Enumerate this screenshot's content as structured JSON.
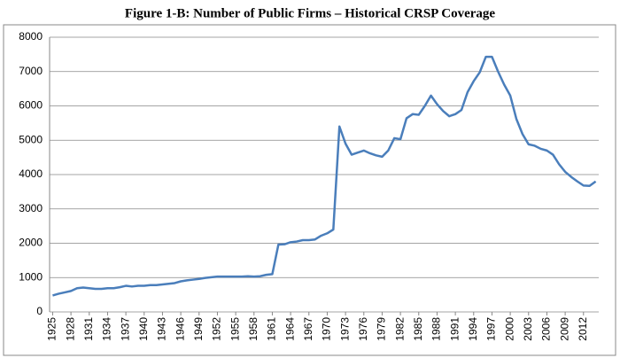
{
  "chart_data": {
    "type": "line",
    "title": "Figure 1-B: Number of Public Firms – Historical CRSP Coverage",
    "x": [
      1925,
      1926,
      1927,
      1928,
      1929,
      1930,
      1931,
      1932,
      1933,
      1934,
      1935,
      1936,
      1937,
      1938,
      1939,
      1940,
      1941,
      1942,
      1943,
      1944,
      1945,
      1946,
      1947,
      1948,
      1949,
      1950,
      1951,
      1952,
      1953,
      1954,
      1955,
      1956,
      1957,
      1958,
      1959,
      1960,
      1961,
      1962,
      1963,
      1964,
      1965,
      1966,
      1967,
      1968,
      1969,
      1970,
      1971,
      1972,
      1973,
      1974,
      1975,
      1976,
      1977,
      1978,
      1979,
      1980,
      1981,
      1982,
      1983,
      1984,
      1985,
      1986,
      1987,
      1988,
      1989,
      1990,
      1991,
      1992,
      1993,
      1994,
      1995,
      1996,
      1997,
      1998,
      1999,
      2000,
      2001,
      2002,
      2003,
      2004,
      2005,
      2006,
      2007,
      2008,
      2009,
      2010,
      2011,
      2012,
      2013,
      2014
    ],
    "values": [
      480,
      530,
      570,
      610,
      690,
      710,
      690,
      670,
      670,
      690,
      690,
      720,
      760,
      740,
      760,
      760,
      780,
      780,
      800,
      820,
      840,
      890,
      920,
      940,
      960,
      990,
      1010,
      1030,
      1030,
      1030,
      1030,
      1030,
      1040,
      1030,
      1040,
      1080,
      1100,
      1960,
      1970,
      2030,
      2050,
      2090,
      2090,
      2110,
      2220,
      2290,
      2400,
      5400,
      4900,
      4580,
      4640,
      4700,
      4620,
      4560,
      4520,
      4700,
      5060,
      5030,
      5640,
      5760,
      5740,
      6000,
      6300,
      6050,
      5850,
      5700,
      5760,
      5880,
      6400,
      6720,
      6980,
      7430,
      7430,
      7000,
      6620,
      6300,
      5620,
      5180,
      4880,
      4840,
      4750,
      4700,
      4580,
      4300,
      4080,
      3930,
      3800,
      3680,
      3670,
      3800
    ],
    "color": "#4a7ebb",
    "xlim": [
      1924.5,
      2014.5
    ],
    "xticks": [
      1925,
      1928,
      1931,
      1934,
      1937,
      1940,
      1943,
      1946,
      1949,
      1952,
      1955,
      1958,
      1961,
      1964,
      1967,
      1970,
      1973,
      1976,
      1979,
      1982,
      1985,
      1988,
      1991,
      1994,
      1997,
      2000,
      2003,
      2006,
      2009,
      2012
    ],
    "ylim": [
      0,
      8000
    ],
    "yticks": [
      0,
      1000,
      2000,
      3000,
      4000,
      5000,
      6000,
      7000,
      8000
    ],
    "grid": true
  }
}
